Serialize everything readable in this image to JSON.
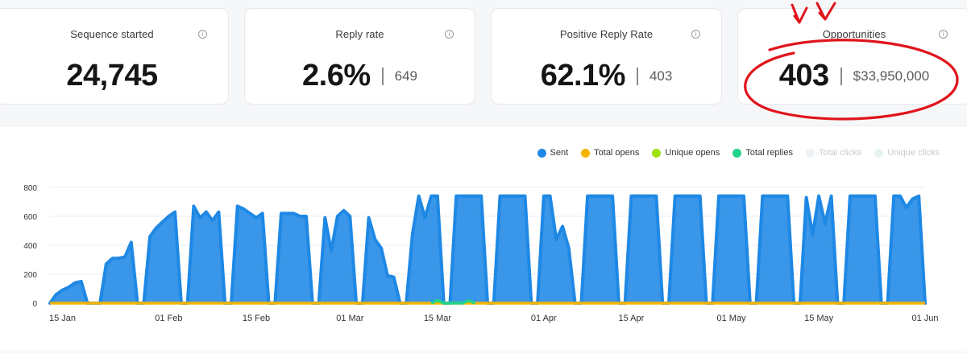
{
  "cards": [
    {
      "label": "Sequence started",
      "value": "24,745",
      "secondary": ""
    },
    {
      "label": "Reply rate",
      "value": "2.6%",
      "secondary": "649"
    },
    {
      "label": "Positive Reply Rate",
      "value": "62.1%",
      "secondary": "403"
    },
    {
      "label": "Opportunities",
      "value": "403",
      "secondary": "$33,950,000"
    }
  ],
  "info_icon": "info-icon",
  "legend": [
    {
      "label": "Sent",
      "color": "#1e88e5",
      "active": true
    },
    {
      "label": "Total opens",
      "color": "#f5b400",
      "active": true
    },
    {
      "label": "Unique opens",
      "color": "#9ee20d",
      "active": true
    },
    {
      "label": "Total replies",
      "color": "#1ed48a",
      "active": true
    },
    {
      "label": "Total clicks",
      "color": "#eef2f4",
      "active": false
    },
    {
      "label": "Unique clicks",
      "color": "#e6f4ee",
      "active": false
    }
  ],
  "chart_data": {
    "type": "area",
    "x_domain": [
      "2024-01-13",
      "2024-06-01"
    ],
    "ylim": [
      0,
      800
    ],
    "yticks": [
      0,
      200,
      400,
      600,
      800
    ],
    "xticks": [
      {
        "date": "2024-01-15",
        "label": "15 Jan"
      },
      {
        "date": "2024-02-01",
        "label": "01 Feb"
      },
      {
        "date": "2024-02-15",
        "label": "15 Feb"
      },
      {
        "date": "2024-03-01",
        "label": "01 Mar"
      },
      {
        "date": "2024-03-15",
        "label": "15 Mar"
      },
      {
        "date": "2024-04-01",
        "label": "01 Apr"
      },
      {
        "date": "2024-04-15",
        "label": "15 Apr"
      },
      {
        "date": "2024-05-01",
        "label": "01 May"
      },
      {
        "date": "2024-05-15",
        "label": "15 May"
      },
      {
        "date": "2024-06-01",
        "label": "01 Jun"
      }
    ],
    "series": [
      {
        "name": "Sent",
        "color": "#1e88e5",
        "points": [
          [
            "2024-01-13",
            0
          ],
          [
            "2024-01-14",
            60
          ],
          [
            "2024-01-15",
            90
          ],
          [
            "2024-01-16",
            110
          ],
          [
            "2024-01-17",
            140
          ],
          [
            "2024-01-18",
            150
          ],
          [
            "2024-01-19",
            0
          ],
          [
            "2024-01-21",
            0
          ],
          [
            "2024-01-22",
            270
          ],
          [
            "2024-01-23",
            310
          ],
          [
            "2024-01-24",
            310
          ],
          [
            "2024-01-25",
            320
          ],
          [
            "2024-01-26",
            420
          ],
          [
            "2024-01-27",
            0
          ],
          [
            "2024-01-28",
            0
          ],
          [
            "2024-01-29",
            460
          ],
          [
            "2024-01-30",
            520
          ],
          [
            "2024-01-31",
            560
          ],
          [
            "2024-02-01",
            600
          ],
          [
            "2024-02-02",
            630
          ],
          [
            "2024-02-03",
            0
          ],
          [
            "2024-02-04",
            0
          ],
          [
            "2024-02-05",
            670
          ],
          [
            "2024-02-06",
            590
          ],
          [
            "2024-02-07",
            630
          ],
          [
            "2024-02-08",
            570
          ],
          [
            "2024-02-09",
            630
          ],
          [
            "2024-02-10",
            0
          ],
          [
            "2024-02-11",
            0
          ],
          [
            "2024-02-12",
            670
          ],
          [
            "2024-02-13",
            650
          ],
          [
            "2024-02-14",
            620
          ],
          [
            "2024-02-15",
            590
          ],
          [
            "2024-02-16",
            620
          ],
          [
            "2024-02-17",
            0
          ],
          [
            "2024-02-18",
            0
          ],
          [
            "2024-02-19",
            620
          ],
          [
            "2024-02-20",
            620
          ],
          [
            "2024-02-21",
            620
          ],
          [
            "2024-02-22",
            600
          ],
          [
            "2024-02-23",
            600
          ],
          [
            "2024-02-24",
            0
          ],
          [
            "2024-02-25",
            0
          ],
          [
            "2024-02-26",
            590
          ],
          [
            "2024-02-27",
            360
          ],
          [
            "2024-02-28",
            600
          ],
          [
            "2024-02-29",
            640
          ],
          [
            "2024-03-01",
            600
          ],
          [
            "2024-03-02",
            0
          ],
          [
            "2024-03-03",
            0
          ],
          [
            "2024-03-04",
            590
          ],
          [
            "2024-03-05",
            440
          ],
          [
            "2024-03-06",
            380
          ],
          [
            "2024-03-07",
            190
          ],
          [
            "2024-03-08",
            180
          ],
          [
            "2024-03-09",
            0
          ],
          [
            "2024-03-10",
            0
          ],
          [
            "2024-03-11",
            480
          ],
          [
            "2024-03-12",
            740
          ],
          [
            "2024-03-13",
            590
          ],
          [
            "2024-03-14",
            740
          ],
          [
            "2024-03-15",
            740
          ],
          [
            "2024-03-16",
            0
          ],
          [
            "2024-03-17",
            0
          ],
          [
            "2024-03-18",
            740
          ],
          [
            "2024-03-19",
            740
          ],
          [
            "2024-03-20",
            740
          ],
          [
            "2024-03-21",
            740
          ],
          [
            "2024-03-22",
            740
          ],
          [
            "2024-03-23",
            0
          ],
          [
            "2024-03-24",
            0
          ],
          [
            "2024-03-25",
            740
          ],
          [
            "2024-03-26",
            740
          ],
          [
            "2024-03-27",
            740
          ],
          [
            "2024-03-28",
            740
          ],
          [
            "2024-03-29",
            740
          ],
          [
            "2024-03-30",
            0
          ],
          [
            "2024-03-31",
            0
          ],
          [
            "2024-04-01",
            740
          ],
          [
            "2024-04-02",
            740
          ],
          [
            "2024-04-03",
            440
          ],
          [
            "2024-04-04",
            530
          ],
          [
            "2024-04-05",
            380
          ],
          [
            "2024-04-06",
            0
          ],
          [
            "2024-04-07",
            0
          ],
          [
            "2024-04-08",
            740
          ],
          [
            "2024-04-09",
            740
          ],
          [
            "2024-04-10",
            740
          ],
          [
            "2024-04-11",
            740
          ],
          [
            "2024-04-12",
            740
          ],
          [
            "2024-04-13",
            0
          ],
          [
            "2024-04-14",
            0
          ],
          [
            "2024-04-15",
            740
          ],
          [
            "2024-04-16",
            740
          ],
          [
            "2024-04-17",
            740
          ],
          [
            "2024-04-18",
            740
          ],
          [
            "2024-04-19",
            740
          ],
          [
            "2024-04-20",
            0
          ],
          [
            "2024-04-21",
            0
          ],
          [
            "2024-04-22",
            740
          ],
          [
            "2024-04-23",
            740
          ],
          [
            "2024-04-24",
            740
          ],
          [
            "2024-04-25",
            740
          ],
          [
            "2024-04-26",
            740
          ],
          [
            "2024-04-27",
            0
          ],
          [
            "2024-04-28",
            0
          ],
          [
            "2024-04-29",
            740
          ],
          [
            "2024-04-30",
            740
          ],
          [
            "2024-05-01",
            740
          ],
          [
            "2024-05-02",
            740
          ],
          [
            "2024-05-03",
            740
          ],
          [
            "2024-05-04",
            0
          ],
          [
            "2024-05-05",
            0
          ],
          [
            "2024-05-06",
            740
          ],
          [
            "2024-05-07",
            740
          ],
          [
            "2024-05-08",
            740
          ],
          [
            "2024-05-09",
            740
          ],
          [
            "2024-05-10",
            740
          ],
          [
            "2024-05-11",
            0
          ],
          [
            "2024-05-12",
            0
          ],
          [
            "2024-05-13",
            730
          ],
          [
            "2024-05-14",
            470
          ],
          [
            "2024-05-15",
            740
          ],
          [
            "2024-05-16",
            550
          ],
          [
            "2024-05-17",
            740
          ],
          [
            "2024-05-18",
            0
          ],
          [
            "2024-05-19",
            0
          ],
          [
            "2024-05-20",
            740
          ],
          [
            "2024-05-21",
            740
          ],
          [
            "2024-05-22",
            740
          ],
          [
            "2024-05-23",
            740
          ],
          [
            "2024-05-24",
            740
          ],
          [
            "2024-05-25",
            0
          ],
          [
            "2024-05-26",
            0
          ],
          [
            "2024-05-27",
            740
          ],
          [
            "2024-05-28",
            740
          ],
          [
            "2024-05-29",
            660
          ],
          [
            "2024-05-30",
            720
          ],
          [
            "2024-05-31",
            740
          ],
          [
            "2024-06-01",
            0
          ]
        ]
      },
      {
        "name": "Total opens",
        "color": "#f5b400",
        "points": [
          [
            "2024-01-13",
            0
          ],
          [
            "2024-06-01",
            0
          ]
        ]
      },
      {
        "name": "Total replies",
        "color": "#1ed48a",
        "points": [
          [
            "2024-03-14",
            0
          ],
          [
            "2024-03-15",
            20
          ],
          [
            "2024-03-16",
            0
          ],
          [
            "2024-03-19",
            0
          ],
          [
            "2024-03-20",
            18
          ],
          [
            "2024-03-21",
            0
          ]
        ]
      }
    ]
  }
}
